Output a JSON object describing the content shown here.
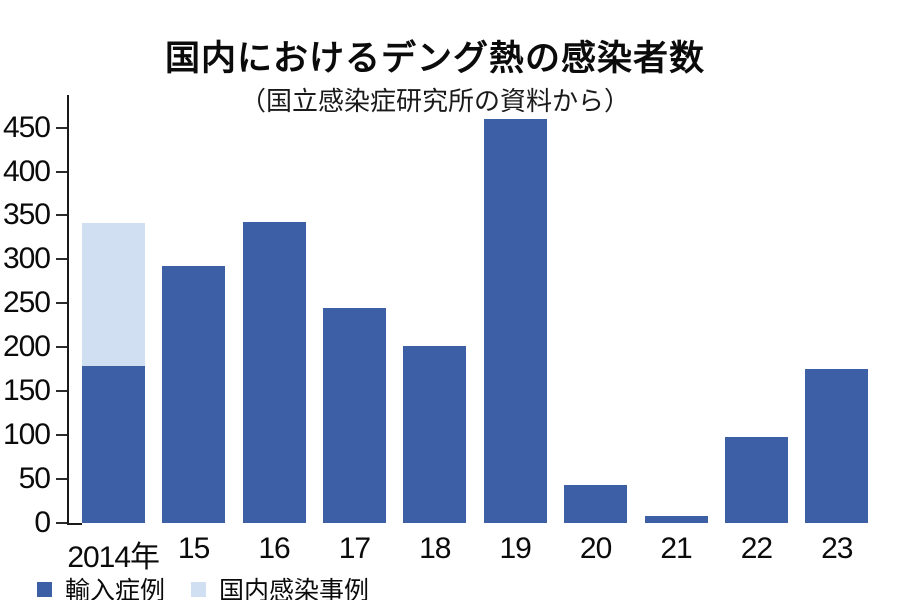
{
  "chart_data": {
    "type": "bar",
    "stacked": true,
    "title": "国内におけるデング熱の感染者数",
    "subtitle": "（国立感染症研究所の資料から）",
    "categories": [
      "2014年",
      "15",
      "16",
      "17",
      "18",
      "19",
      "20",
      "21",
      "22",
      "23"
    ],
    "series": [
      {
        "key": "imported",
        "name": "輸入症例",
        "color": "#3c5fa6",
        "values": [
          179,
          292,
          343,
          245,
          201,
          460,
          43,
          8,
          98,
          175
        ]
      },
      {
        "key": "domestic",
        "name": "国内感染事例",
        "color": "#d0e0f2",
        "values": [
          162,
          0,
          0,
          0,
          0,
          0,
          0,
          0,
          0,
          0
        ]
      }
    ],
    "ylim": [
      0,
      487
    ],
    "yticks": [
      0,
      50,
      100,
      150,
      200,
      250,
      300,
      350,
      400,
      450
    ],
    "grid": false,
    "legend_position": "bottom-left",
    "axis_color": "#1a1a1a",
    "background_color": "#ffffff"
  }
}
